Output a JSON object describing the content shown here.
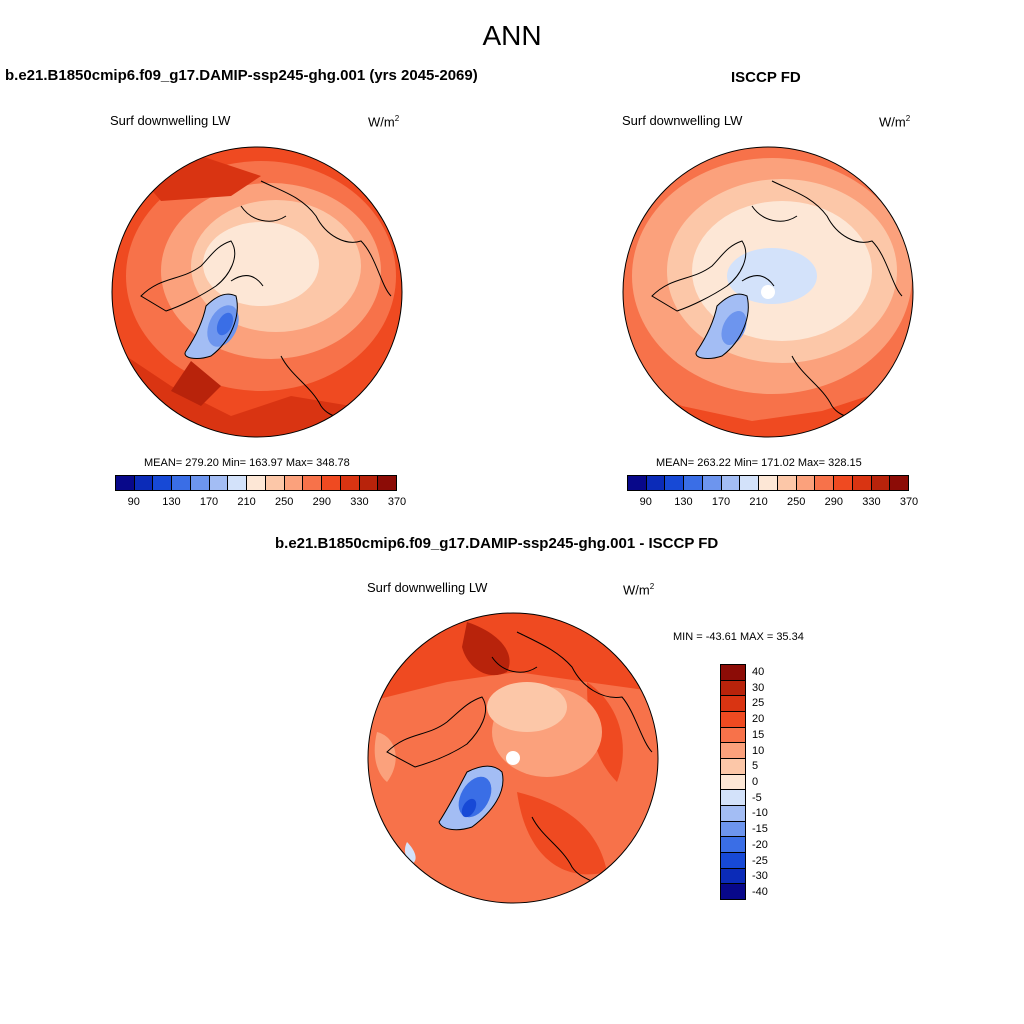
{
  "title": "ANN",
  "panels": {
    "model": {
      "title": "b.e21.B1850cmip6.f09_g17.DAMIP-ssp245-ghg.001 (yrs 2045-2069)",
      "variable": "Surf downwelling LW",
      "units_base": "W/m",
      "units_exp": "2",
      "stats": "MEAN= 279.20  Min= 163.97  Max= 348.78",
      "colorbar_ticks": [
        "90",
        "130",
        "170",
        "210",
        "250",
        "290",
        "330",
        "370"
      ]
    },
    "obs": {
      "title": "ISCCP FD",
      "variable": "Surf downwelling LW",
      "units_base": "W/m",
      "units_exp": "2",
      "stats": "MEAN= 263.22  Min= 171.02  Max= 328.15",
      "colorbar_ticks": [
        "90",
        "130",
        "170",
        "210",
        "250",
        "290",
        "330",
        "370"
      ]
    },
    "diff": {
      "title": "b.e21.B1850cmip6.f09_g17.DAMIP-ssp245-ghg.001 - ISCCP FD",
      "variable": "Surf downwelling LW",
      "units_base": "W/m",
      "units_exp": "2",
      "stats": "MIN = -43.61 MAX =  35.34",
      "colorbar_ticks": [
        "40",
        "30",
        "25",
        "20",
        "15",
        "10",
        "5",
        "0",
        "-5",
        "-10",
        "-15",
        "-20",
        "-25",
        "-30",
        "-40"
      ]
    }
  },
  "colors": {
    "abs_scale": [
      "#08088a",
      "#0b2bb8",
      "#1749d6",
      "#3a6ee6",
      "#6d95ee",
      "#a3bdf4",
      "#d3e2fa",
      "#fde7d6",
      "#fcc7a8",
      "#fba17c",
      "#f7724a",
      "#ef4a21",
      "#d93412",
      "#b8230b",
      "#8c0c06"
    ],
    "diff_scale": [
      "#8c0c06",
      "#b8230b",
      "#d93412",
      "#ef4a21",
      "#f7724a",
      "#fba17c",
      "#fcc7a8",
      "#fde7d6",
      "#d3e2fa",
      "#a3bdf4",
      "#6d95ee",
      "#3a6ee6",
      "#1749d6",
      "#0b2bb8",
      "#08088a"
    ]
  }
}
